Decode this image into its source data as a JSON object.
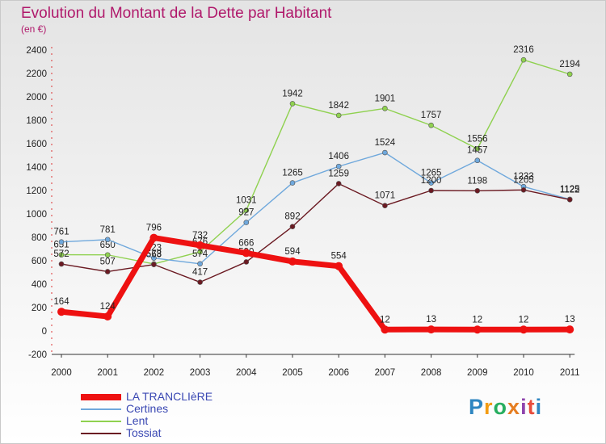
{
  "header": {
    "title": "Evolution du Montant de la Dette par Habitant",
    "unit": "(en €)"
  },
  "brand": {
    "letters": [
      "P",
      "r",
      "o",
      "x",
      "i",
      "t",
      "i"
    ],
    "colors": [
      "#2e86c1",
      "#f39c12",
      "#27ae60",
      "#e67e22",
      "#8e44ad",
      "#e74c3c",
      "#2e86c1"
    ]
  },
  "chart_data": {
    "type": "line",
    "x": [
      "2000",
      "2001",
      "2002",
      "2003",
      "2004",
      "2005",
      "2006",
      "2007",
      "2008",
      "2009",
      "2010",
      "2011"
    ],
    "ylim": [
      -200,
      2400
    ],
    "yticks": [
      -200,
      0,
      200,
      400,
      600,
      800,
      1000,
      1200,
      1400,
      1600,
      1800,
      2000,
      2200,
      2400
    ],
    "grid": false,
    "legend_position": "bottom-left",
    "series": [
      {
        "name": "Lent",
        "color": "#8fd14f",
        "values": [
          651,
          650,
          573,
          676,
          1031,
          1942,
          1842,
          1901,
          1757,
          1556,
          2316,
          2194
        ]
      },
      {
        "name": "Certines",
        "color": "#6fa8dc",
        "values": [
          761,
          781,
          623,
          574,
          927,
          1265,
          1406,
          1524,
          1265,
          1457,
          1233,
          1125
        ]
      },
      {
        "name": "Tossiat",
        "color": "#6b1a22",
        "values": [
          572,
          507,
          568,
          417,
          590,
          892,
          1259,
          1071,
          1200,
          1198,
          1205,
          1122
        ]
      },
      {
        "name": "LA TRANCLIèRE",
        "color": "#ee1111",
        "values": [
          164,
          124,
          796,
          732,
          666,
          594,
          554,
          12,
          13,
          12,
          12,
          13
        ]
      }
    ]
  }
}
